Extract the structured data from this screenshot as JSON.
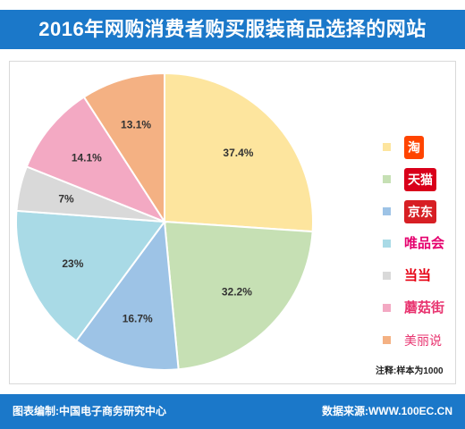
{
  "header": {
    "title": "2016年网购消费者购买服装商品选择的网站"
  },
  "chart_data": {
    "type": "pie",
    "title": "2016年网购消费者购买服装商品选择的网站",
    "start": "12 o'clock, clockwise",
    "series": [
      {
        "name": "淘",
        "value": 37.4,
        "label": "37.4%",
        "color": "#fde59e"
      },
      {
        "name": "天猫",
        "value": 32.2,
        "label": "32.2%",
        "color": "#c6e0b4"
      },
      {
        "name": "京东",
        "value": 16.7,
        "label": "16.7%",
        "color": "#9dc3e6"
      },
      {
        "name": "唯品会",
        "value": 23,
        "label": "23%",
        "color": "#a9dae6"
      },
      {
        "name": "当当",
        "value": 7,
        "label": "7%",
        "color": "#d9d9d9"
      },
      {
        "name": "蘑菇街",
        "value": 14.1,
        "label": "14.1%",
        "color": "#f3a9c3"
      },
      {
        "name": "美丽说",
        "value": 13.1,
        "label": "13.1%",
        "color": "#f4b183"
      }
    ],
    "legend_position": "right"
  },
  "legend": [
    {
      "text": "淘",
      "logo_color": "#ff4400",
      "style": "box"
    },
    {
      "text": "天猫",
      "logo_color": "#d9001a",
      "style": "box"
    },
    {
      "text": "京东",
      "logo_color": "#d71f24",
      "style": "box"
    },
    {
      "text": "唯品会",
      "logo_color": "#e5006e",
      "style": "text"
    },
    {
      "text": "当当",
      "logo_color": "#e60012",
      "style": "text"
    },
    {
      "text": "蘑菇街",
      "logo_color": "#e8336f",
      "style": "text"
    },
    {
      "text": "美丽说",
      "logo_color": "#e8336f",
      "style": "plain"
    }
  ],
  "note": "注释:样本为1000",
  "footer": {
    "left": "图表编制:中国电子商务研究中心",
    "right": "数据来源:WWW.100EC.CN"
  }
}
